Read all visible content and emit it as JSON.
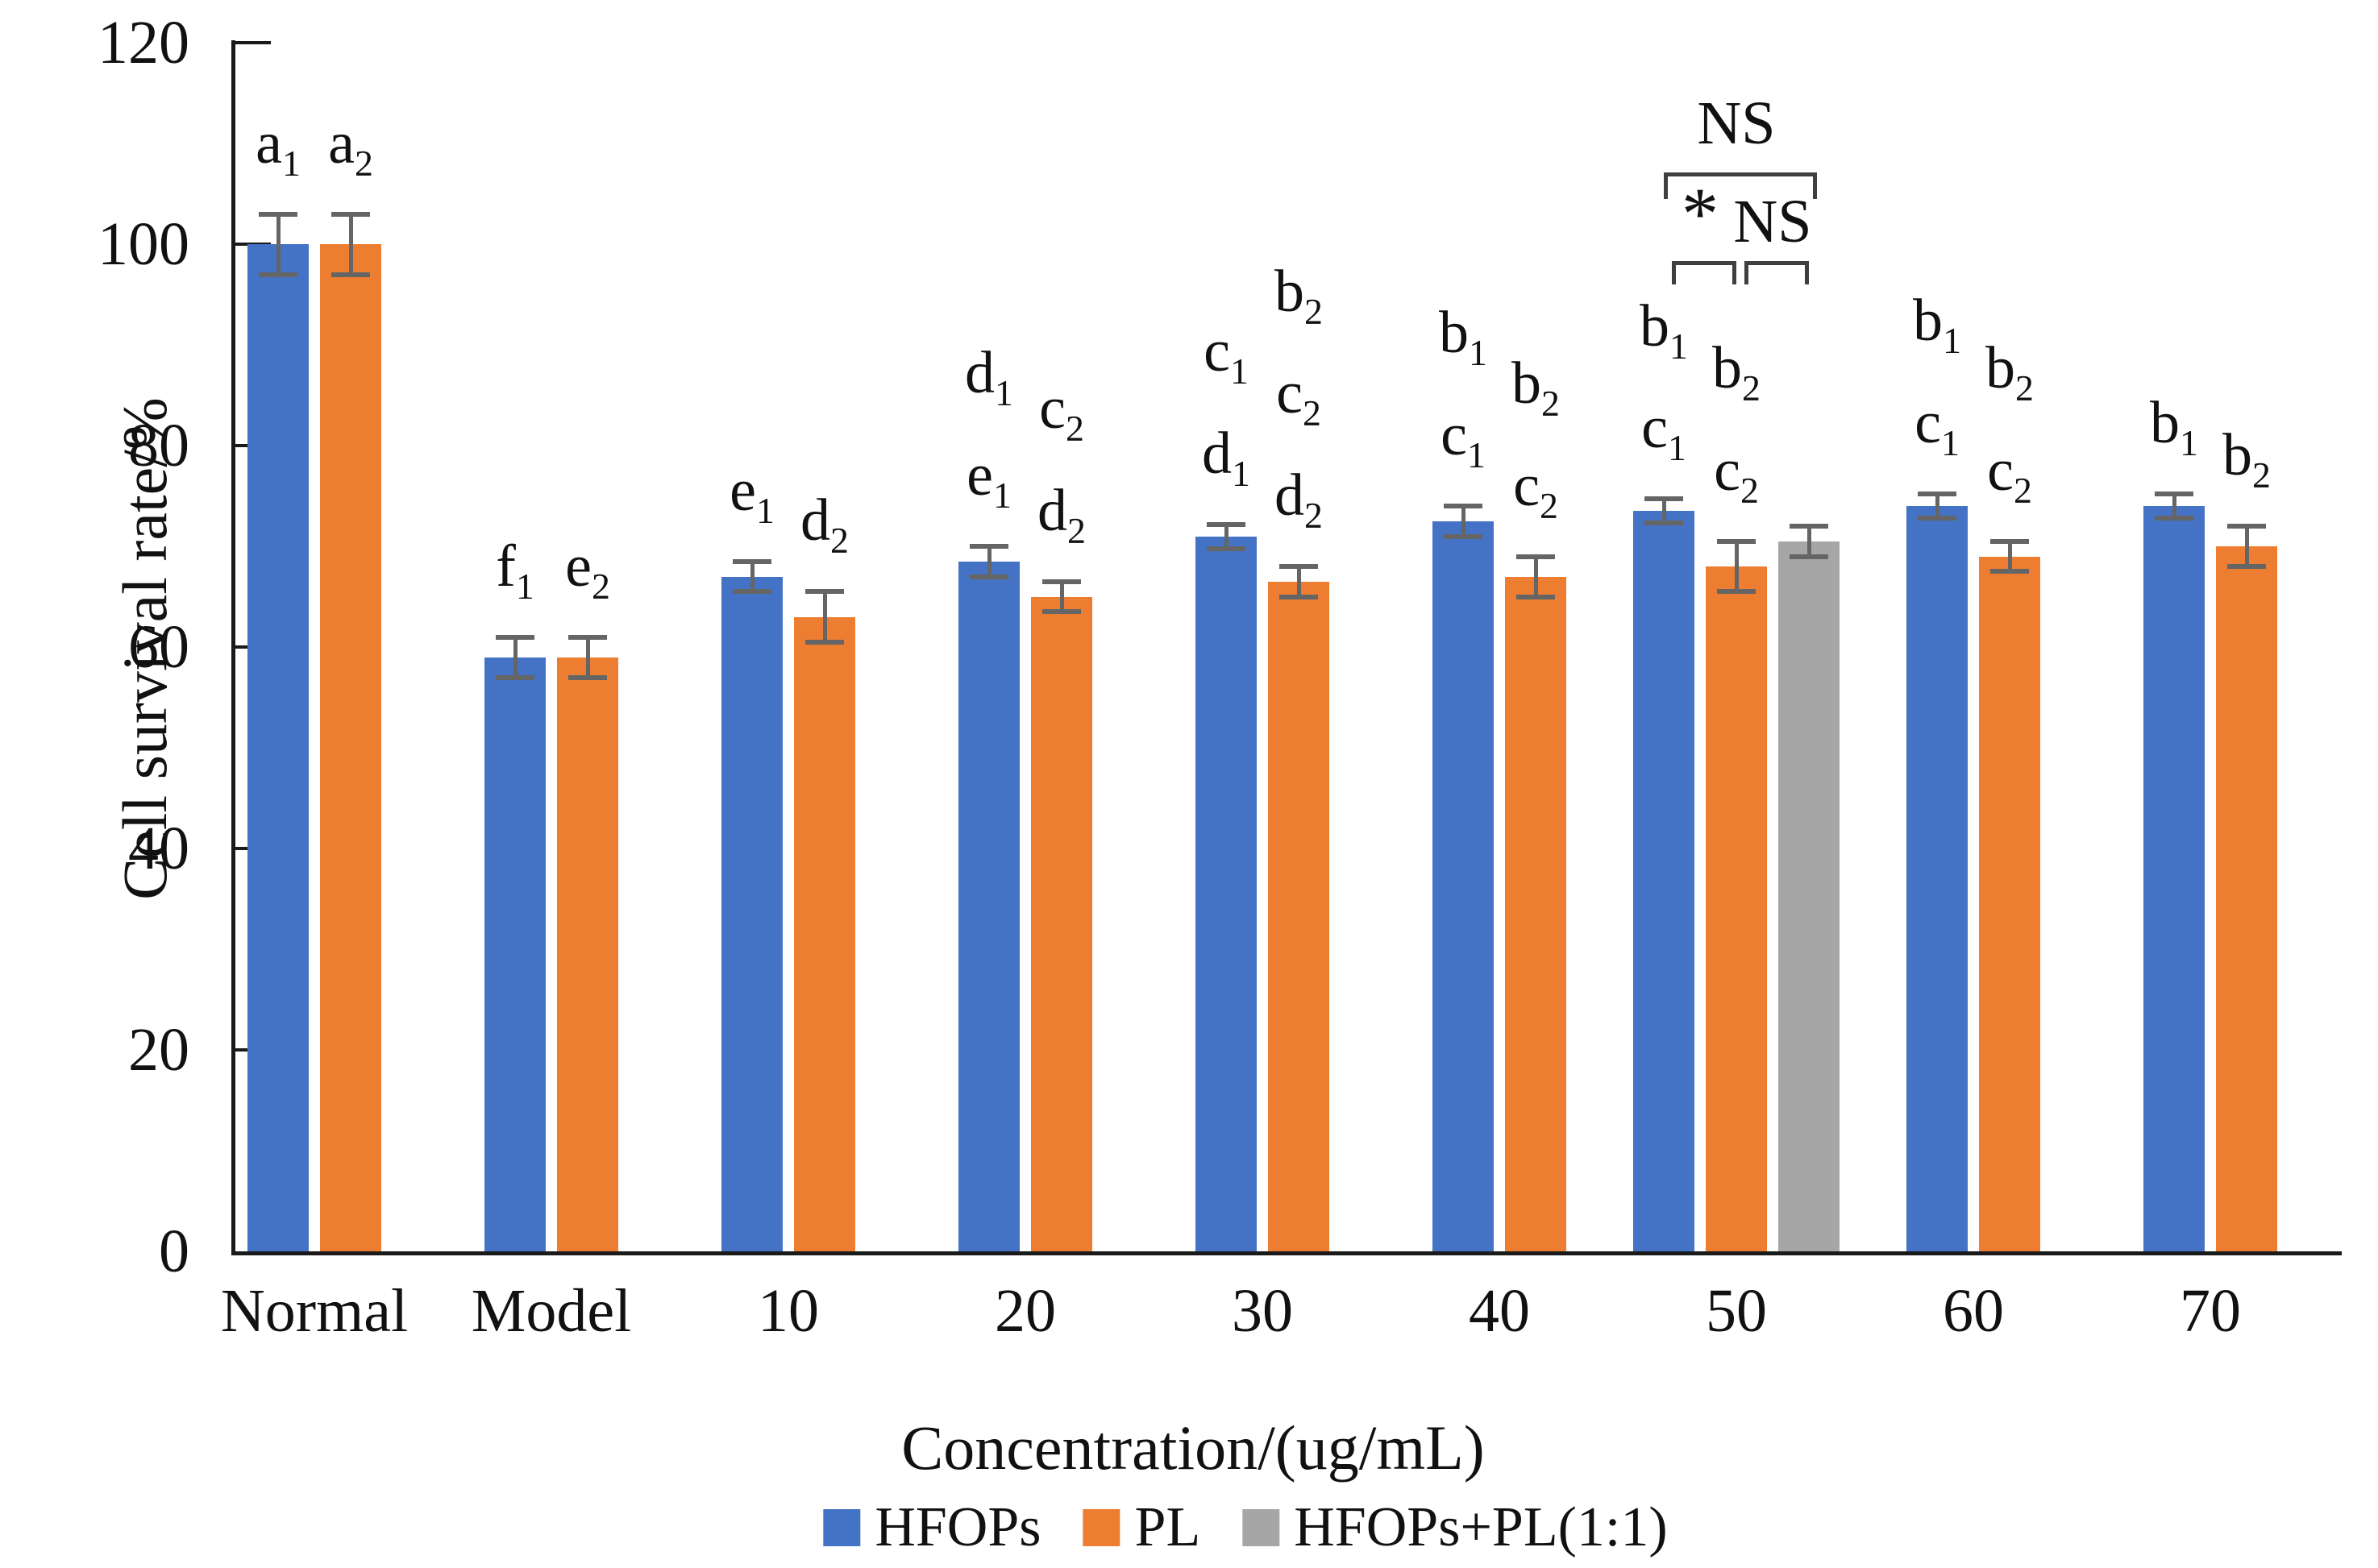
{
  "chart_data": {
    "type": "bar",
    "title": "",
    "xlabel": "Concentration/(ug/mL)",
    "ylabel": "Cell survival rate/%",
    "ylim": [
      0,
      120
    ],
    "yticks": [
      0,
      20,
      40,
      60,
      80,
      100,
      120
    ],
    "grid": false,
    "legend_position": "bottom",
    "categories": [
      "Normal",
      "Model",
      "10",
      "20",
      "30",
      "40",
      "50",
      "60",
      "70"
    ],
    "series": [
      {
        "name": "HFOPs",
        "color": "#4472C4",
        "values": [
          100,
          59,
          67,
          68.5,
          71,
          72.5,
          73.5,
          74,
          74
        ],
        "errors": [
          3,
          2,
          1.5,
          1.5,
          1.2,
          1.5,
          1.2,
          1.2,
          1.2
        ],
        "letter_labels": [
          [
            "a1"
          ],
          [
            "f1"
          ],
          [
            "e1"
          ],
          [
            "d1",
            "e1"
          ],
          [
            "c1",
            "d1"
          ],
          [
            "b1",
            "c1"
          ],
          [
            "b1",
            "c1"
          ],
          [
            "b1",
            "c1"
          ],
          [
            "b1"
          ]
        ]
      },
      {
        "name": "PL",
        "color": "#ED7D31",
        "values": [
          100,
          59,
          63,
          65,
          66.5,
          67,
          68,
          69,
          70
        ],
        "errors": [
          3,
          2,
          2.5,
          1.5,
          1.5,
          2,
          2.5,
          1.5,
          2
        ],
        "letter_labels": [
          [
            "a2"
          ],
          [
            "e2"
          ],
          [
            "d2"
          ],
          [
            "c2",
            "d2"
          ],
          [
            "b2",
            "c2",
            "d2"
          ],
          [
            "b2",
            "c2"
          ],
          [
            "b2",
            "c2"
          ],
          [
            "b2",
            "c2"
          ],
          [
            "b2"
          ]
        ]
      },
      {
        "name": "HFOPs+PL(1:1)",
        "color": "#A6A6A6",
        "values": [
          null,
          null,
          null,
          null,
          null,
          null,
          70.5,
          null,
          null
        ],
        "errors": [
          null,
          null,
          null,
          null,
          null,
          null,
          1.5,
          null,
          null
        ],
        "letter_labels": [
          [],
          [],
          [],
          [],
          [],
          [],
          [],
          [],
          []
        ]
      }
    ],
    "error_bar_color": "#656565",
    "axis_color": "#1a1a1a",
    "text_color": "#111111",
    "significance_annotations": {
      "group": "50",
      "items": [
        {
          "label": "NS",
          "from_series": "HFOPs",
          "to_series": "HFOPs+PL(1:1)",
          "tier": 1
        },
        {
          "label": "*",
          "from_series": "HFOPs",
          "to_series": "PL",
          "tier": 2
        },
        {
          "label": "NS",
          "from_series": "PL",
          "to_series": "HFOPs+PL(1:1)",
          "tier": 2
        }
      ]
    },
    "legend": {
      "entries": [
        "HFOPs",
        "PL",
        "HFOPs+PL(1:1)"
      ]
    }
  }
}
